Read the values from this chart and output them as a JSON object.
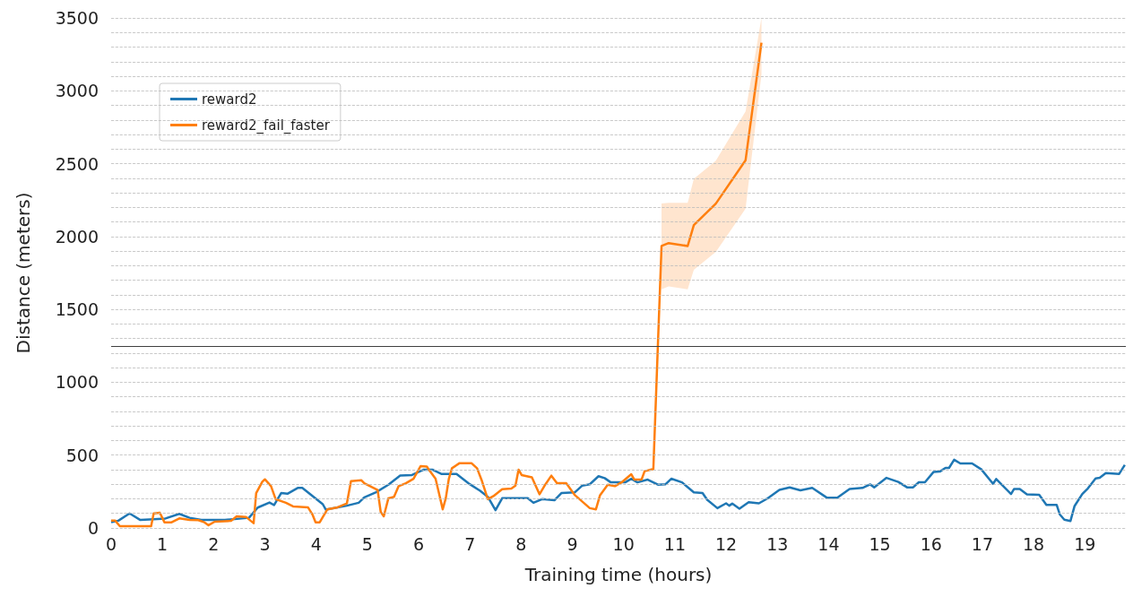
{
  "chart_data": {
    "type": "line",
    "xlabel": "Training time (hours)",
    "ylabel": "Distance (meters)",
    "xlim": [
      0,
      19.8
    ],
    "xticks": [
      0,
      1,
      2,
      3,
      4,
      5,
      6,
      7,
      8,
      9,
      10,
      11,
      12,
      13,
      14,
      15,
      16,
      17,
      18,
      19
    ],
    "ylim": [
      0,
      3500
    ],
    "yticks": [
      0,
      {
        "value": 100,
        "label": null
      },
      {
        "value": 200,
        "label": null
      },
      {
        "value": 300,
        "label": null
      },
      {
        "value": 400,
        "label": null
      },
      500,
      {
        "value": 600,
        "label": null
      },
      {
        "value": 700,
        "label": null
      },
      {
        "value": 800,
        "label": null
      },
      {
        "value": 900,
        "label": null
      },
      1000,
      {
        "value": 1100,
        "label": null
      },
      {
        "value": 1200,
        "label": null
      },
      {
        "value": 1300,
        "label": null
      },
      {
        "value": 1400,
        "label": null
      },
      1500,
      {
        "value": 1600,
        "label": null
      },
      {
        "value": 1700,
        "label": null
      },
      {
        "value": 1800,
        "label": null
      },
      {
        "value": 1900,
        "label": null
      },
      2000,
      {
        "value": 2100,
        "label": null
      },
      {
        "value": 2200,
        "label": null
      },
      {
        "value": 2300,
        "label": null
      },
      {
        "value": 2400,
        "label": null
      },
      2500,
      {
        "value": 2600,
        "label": null
      },
      {
        "value": 2700,
        "label": null
      },
      {
        "value": 2800,
        "label": null
      },
      {
        "value": 2900,
        "label": null
      },
      3000,
      {
        "value": 3100,
        "label": null
      },
      {
        "value": 3200,
        "label": null
      },
      {
        "value": 3300,
        "label": null
      },
      {
        "value": 3400,
        "label": null
      },
      3500
    ],
    "grid": "y",
    "legend": "top left",
    "marker": "none",
    "line_style": "solid",
    "ref_lines": [
      {
        "axis": "y",
        "value": 1250,
        "label": null,
        "color": "#404040"
      }
    ],
    "series": [
      {
        "name": "reward2",
        "color": "#1f77b4",
        "x": [
          0,
          0.14,
          0.36,
          0.57,
          0.83,
          1.06,
          1.33,
          1.53,
          1.76,
          2.22,
          2.69,
          2.86,
          3.09,
          3.18,
          3.32,
          3.44,
          3.64,
          3.73,
          4.13,
          4.19,
          4.6,
          4.83,
          4.94,
          5.17,
          5.41,
          5.64,
          5.87,
          6.1,
          6.27,
          6.45,
          6.74,
          6.97,
          7.2,
          7.35,
          7.5,
          7.63,
          8.13,
          8.24,
          8.41,
          8.65,
          8.79,
          9.05,
          9.19,
          9.34,
          9.51,
          9.63,
          9.75,
          10.03,
          10.15,
          10.27,
          10.47,
          10.67,
          10.82,
          10.93,
          11.14,
          11.37,
          11.54,
          11.63,
          11.83,
          12,
          12.06,
          12.12,
          12.26,
          12.44,
          12.64,
          12.81,
          13.04,
          13.24,
          13.45,
          13.68,
          13.97,
          14.17,
          14.41,
          14.66,
          14.81,
          14.89,
          15.13,
          15.36,
          15.53,
          15.65,
          15.76,
          15.88,
          16.05,
          16.17,
          16.28,
          16.35,
          16.45,
          16.57,
          16.8,
          16.98,
          17.21,
          17.27,
          17.56,
          17.62,
          17.73,
          17.87,
          18.11,
          18.25,
          18.45,
          18.51,
          18.6,
          18.72,
          18.8,
          18.95,
          19.06,
          19.21,
          19.29,
          19.41,
          19.67,
          19.78
        ],
        "values": [
          40,
          50,
          100,
          55,
          60,
          65,
          97,
          70,
          55,
          55,
          70,
          140,
          175,
          157,
          240,
          235,
          275,
          275,
          163,
          126,
          153,
          173,
          210,
          245,
          297,
          360,
          363,
          400,
          400,
          370,
          370,
          307,
          255,
          214,
          122,
          204,
          204,
          173,
          198,
          190,
          240,
          245,
          290,
          300,
          355,
          342,
          313,
          313,
          338,
          313,
          332,
          297,
          300,
          338,
          313,
          245,
          240,
          194,
          136,
          169,
          153,
          167,
          132,
          177,
          169,
          203,
          262,
          278,
          258,
          275,
          207,
          207,
          268,
          275,
          299,
          279,
          344,
          316,
          279,
          279,
          314,
          314,
          385,
          387,
          412,
          412,
          468,
          443,
          443,
          402,
          303,
          336,
          233,
          268,
          268,
          231,
          227,
          159,
          159,
          94,
          57,
          48,
          151,
          233,
          272,
          340,
          344,
          377,
          371,
          433
        ]
      },
      {
        "name": "reward2_fail_faster",
        "color": "#ff7f0e",
        "x": [
          0,
          0.08,
          0.17,
          0.78,
          0.83,
          0.95,
          1.04,
          1.18,
          1.33,
          1.53,
          1.7,
          1.82,
          1.9,
          2.02,
          2.34,
          2.45,
          2.63,
          2.78,
          2.83,
          2.95,
          3,
          3.12,
          3.21,
          3.41,
          3.55,
          3.84,
          3.93,
          3.99,
          4.07,
          4.22,
          4.42,
          4.6,
          4.68,
          4.88,
          4.94,
          5.2,
          5.26,
          5.32,
          5.41,
          5.52,
          5.61,
          5.75,
          5.9,
          6.04,
          6.16,
          6.22,
          6.33,
          6.42,
          6.47,
          6.53,
          6.59,
          6.65,
          6.8,
          7.03,
          7.14,
          7.23,
          7.35,
          7.46,
          7.63,
          7.81,
          7.89,
          7.95,
          8.01,
          8.21,
          8.36,
          8.47,
          8.59,
          8.7,
          8.88,
          9.05,
          9.22,
          9.34,
          9.46,
          9.54,
          9.69,
          9.83,
          9.98,
          10.15,
          10.21,
          10.35,
          10.41,
          10.58,
          10.74,
          10.88,
          11.25,
          11.37,
          11.8,
          12.38,
          12.69
        ],
        "values": [
          50,
          50,
          12,
          12,
          100,
          105,
          39,
          39,
          66,
          56,
          54,
          39,
          19,
          43,
          49,
          80,
          76,
          33,
          239,
          318,
          334,
          287,
          198,
          173,
          148,
          142,
          91,
          39,
          39,
          128,
          142,
          169,
          322,
          328,
          307,
          260,
          111,
          80,
          204,
          214,
          287,
          307,
          338,
          425,
          421,
          390,
          338,
          204,
          128,
          204,
          338,
          410,
          445,
          445,
          410,
          328,
          198,
          219,
          266,
          270,
          290,
          400,
          363,
          348,
          231,
          297,
          359,
          307,
          307,
          225,
          173,
          136,
          128,
          225,
          297,
          287,
          318,
          369,
          332,
          332,
          390,
          404,
          1935,
          1955,
          1935,
          2078,
          2226,
          2524,
          3330
        ],
        "lower": [
          null,
          null,
          null,
          null,
          null,
          null,
          null,
          null,
          null,
          null,
          null,
          null,
          null,
          null,
          null,
          null,
          null,
          null,
          null,
          null,
          null,
          null,
          null,
          null,
          null,
          null,
          null,
          null,
          null,
          null,
          null,
          null,
          null,
          null,
          null,
          null,
          null,
          null,
          null,
          null,
          null,
          null,
          null,
          null,
          null,
          null,
          null,
          null,
          null,
          null,
          null,
          null,
          null,
          null,
          null,
          null,
          null,
          null,
          null,
          null,
          null,
          null,
          null,
          null,
          null,
          null,
          null,
          null,
          null,
          null,
          null,
          null,
          null,
          null,
          null,
          null,
          null,
          null,
          null,
          null,
          null,
          null,
          1637,
          1658,
          1637,
          1771,
          1894,
          2191,
          3114
        ],
        "upper": [
          null,
          null,
          null,
          null,
          null,
          null,
          null,
          null,
          null,
          null,
          null,
          null,
          null,
          null,
          null,
          null,
          null,
          null,
          null,
          null,
          null,
          null,
          null,
          null,
          null,
          null,
          null,
          null,
          null,
          null,
          null,
          null,
          null,
          null,
          null,
          null,
          null,
          null,
          null,
          null,
          null,
          null,
          null,
          null,
          null,
          null,
          null,
          null,
          null,
          null,
          null,
          null,
          null,
          null,
          null,
          null,
          null,
          null,
          null,
          null,
          null,
          null,
          null,
          null,
          null,
          null,
          null,
          null,
          null,
          null,
          null,
          null,
          null,
          null,
          null,
          null,
          null,
          null,
          null,
          null,
          null,
          null,
          2226,
          2232,
          2232,
          2396,
          2520,
          2858,
          3500
        ]
      }
    ]
  }
}
